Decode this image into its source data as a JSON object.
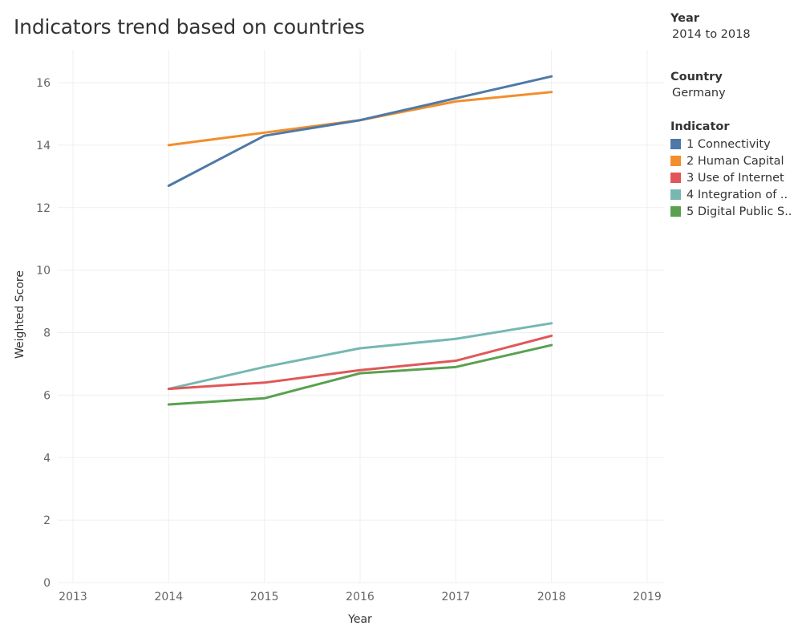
{
  "title": "Indicators trend based on countries",
  "filters": {
    "year": {
      "label": "Year",
      "value": "2014 to 2018"
    },
    "country": {
      "label": "Country",
      "value": "Germany"
    }
  },
  "legend": {
    "title": "Indicator",
    "items": [
      {
        "label": "1 Connectivity",
        "color": "#4e79a7"
      },
      {
        "label": "2 Human Capital",
        "color": "#f28e2b"
      },
      {
        "label": "3 Use of Internet",
        "color": "#e15759"
      },
      {
        "label": "4 Integration of ..",
        "color": "#76b7b2"
      },
      {
        "label": "5 Digital Public S..",
        "color": "#59a14f"
      }
    ]
  },
  "chart_data": {
    "type": "line",
    "title": "Indicators trend based on countries",
    "xlabel": "Year",
    "ylabel": "Weighted Score",
    "x_ticks": [
      "2013",
      "2014",
      "2015",
      "2016",
      "2017",
      "2018",
      "2019"
    ],
    "y_ticks": [
      "0",
      "2",
      "4",
      "6",
      "8",
      "10",
      "12",
      "14",
      "16"
    ],
    "xlim": [
      2013,
      2019
    ],
    "ylim": [
      0,
      17
    ],
    "grid": true,
    "x": [
      2014,
      2015,
      2016,
      2017,
      2018
    ],
    "series": [
      {
        "name": "1 Connectivity",
        "color": "#4e79a7",
        "values": [
          12.7,
          14.3,
          14.8,
          15.5,
          16.2
        ]
      },
      {
        "name": "2 Human Capital",
        "color": "#f28e2b",
        "values": [
          14.0,
          14.4,
          14.8,
          15.4,
          15.7
        ]
      },
      {
        "name": "3 Use of Internet",
        "color": "#e15759",
        "values": [
          6.2,
          6.4,
          6.8,
          7.1,
          7.9
        ]
      },
      {
        "name": "4 Integration of ..",
        "color": "#76b7b2",
        "values": [
          6.2,
          6.9,
          7.5,
          7.8,
          8.3
        ]
      },
      {
        "name": "5 Digital Public S..",
        "color": "#59a14f",
        "values": [
          5.7,
          5.9,
          6.7,
          6.9,
          7.6
        ]
      }
    ]
  }
}
